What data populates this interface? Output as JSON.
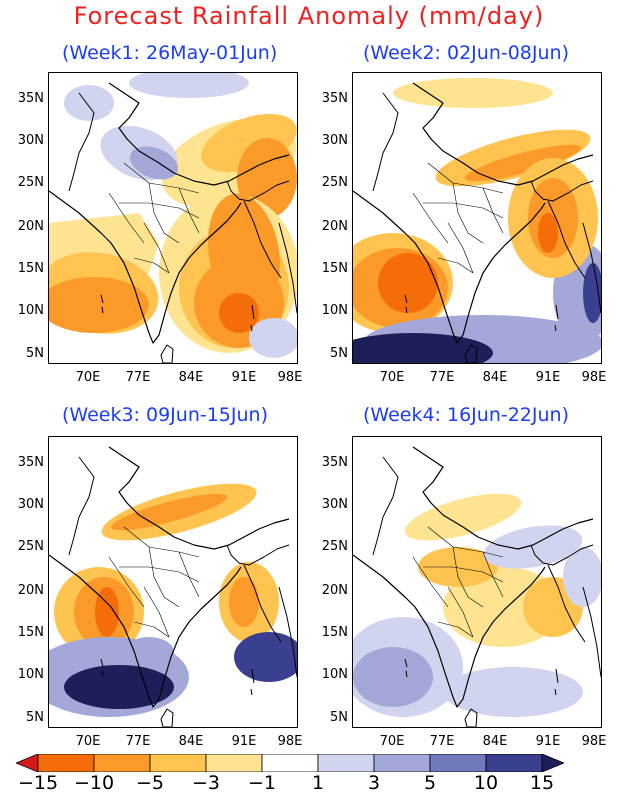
{
  "title": "Forecast Rainfall Anomaly (mm/day)",
  "panels": [
    {
      "label": "(Week1: 26May-01Jun)",
      "pattern": "week1"
    },
    {
      "label": "(Week2: 02Jun-08Jun)",
      "pattern": "week2"
    },
    {
      "label": "(Week3: 09Jun-15Jun)",
      "pattern": "week3"
    },
    {
      "label": "(Week4: 16Jun-22Jun)",
      "pattern": "week4"
    }
  ],
  "lat_labels": [
    "35N",
    "30N",
    "25N",
    "20N",
    "15N",
    "10N",
    "5N"
  ],
  "lon_labels": [
    "70E",
    "77E",
    "84E",
    "91E",
    "98E"
  ],
  "colorbar": {
    "labels": [
      "−15",
      "−10",
      "−5",
      "−3",
      "−1",
      "1",
      "3",
      "5",
      "10",
      "15"
    ],
    "colors": [
      "#d7191c",
      "#f46d09",
      "#fb9a29",
      "#fec44f",
      "#fee391",
      "#ffffff",
      "#d0d4ee",
      "#a3a8d8",
      "#7178bb",
      "#3a3f8f",
      "#1c1f5a"
    ]
  }
}
